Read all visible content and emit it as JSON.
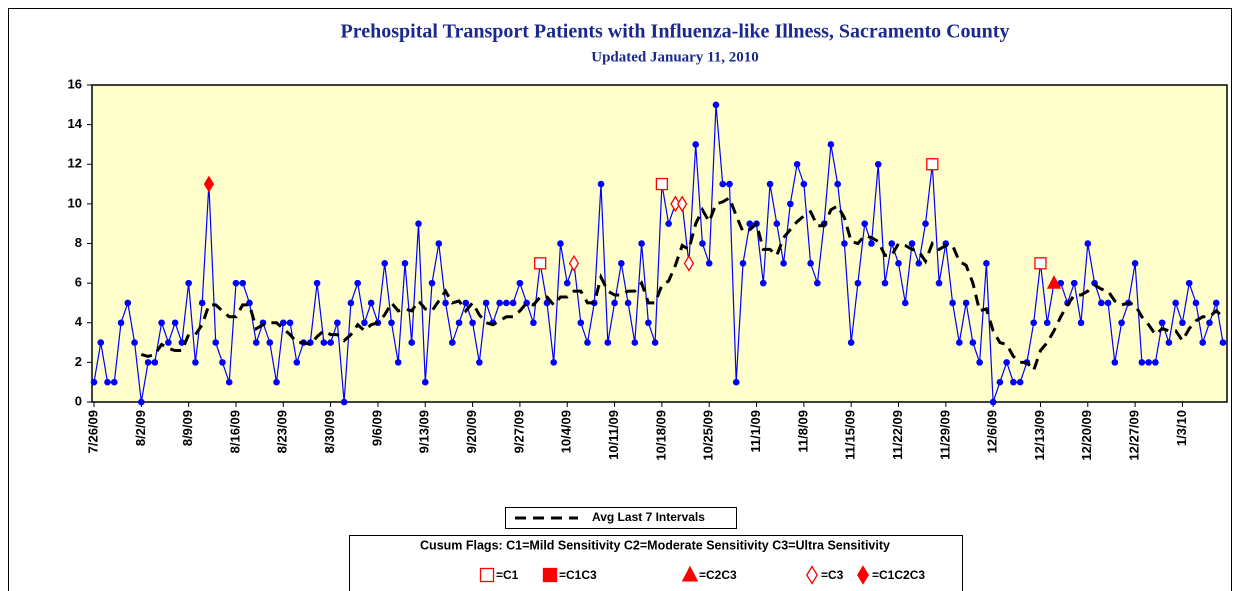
{
  "chart_data": {
    "type": "line",
    "title": "Prehospital Transport Patients with Influenza-like Illness, Sacramento County",
    "subtitle": "Updated January 11, 2010",
    "categories": [
      "7/26/09",
      null,
      null,
      null,
      null,
      null,
      null,
      "8/2/09",
      null,
      null,
      null,
      null,
      null,
      null,
      "8/9/09",
      null,
      null,
      null,
      null,
      null,
      null,
      "8/16/09",
      null,
      null,
      null,
      null,
      null,
      null,
      "8/23/09",
      null,
      null,
      null,
      null,
      null,
      null,
      "8/30/09",
      null,
      null,
      null,
      null,
      null,
      null,
      "9/6/09",
      null,
      null,
      null,
      null,
      null,
      null,
      "9/13/09",
      null,
      null,
      null,
      null,
      null,
      null,
      "9/20/09",
      null,
      null,
      null,
      null,
      null,
      null,
      "9/27/09",
      null,
      null,
      null,
      null,
      null,
      null,
      "10/4/09",
      null,
      null,
      null,
      null,
      null,
      null,
      "10/11/09",
      null,
      null,
      null,
      null,
      null,
      null,
      "10/18/09",
      null,
      null,
      null,
      null,
      null,
      null,
      "10/25/09",
      null,
      null,
      null,
      null,
      null,
      null,
      "11/1/09",
      null,
      null,
      null,
      null,
      null,
      null,
      "11/8/09",
      null,
      null,
      null,
      null,
      null,
      null,
      "11/15/09",
      null,
      null,
      null,
      null,
      null,
      null,
      "11/22/09",
      null,
      null,
      null,
      null,
      null,
      null,
      "11/29/09",
      null,
      null,
      null,
      null,
      null,
      null,
      "12/6/09",
      null,
      null,
      null,
      null,
      null,
      null,
      "12/13/09",
      null,
      null,
      null,
      null,
      null,
      null,
      "12/20/09",
      null,
      null,
      null,
      null,
      null,
      null,
      "12/27/09",
      null,
      null,
      null,
      null,
      null,
      null,
      "1/3/10",
      null,
      null,
      null,
      null,
      null,
      null
    ],
    "series": [
      {
        "color": "#0000ff",
        "marker": "circle",
        "values": [
          1,
          3,
          1,
          1,
          4,
          5,
          3,
          0,
          2,
          2,
          4,
          3,
          4,
          3,
          6,
          2,
          5,
          11,
          3,
          2,
          1,
          6,
          6,
          5,
          3,
          4,
          3,
          1,
          4,
          4,
          2,
          3,
          3,
          6,
          3,
          3,
          4,
          0,
          5,
          6,
          4,
          5,
          4,
          7,
          4,
          2,
          7,
          3,
          9,
          1,
          6,
          8,
          5,
          3,
          4,
          5,
          4,
          2,
          5,
          4,
          5,
          5,
          5,
          6,
          5,
          4,
          7,
          5,
          2,
          8,
          6,
          7,
          4,
          3,
          5,
          11,
          3,
          5,
          7,
          5,
          3,
          8,
          4,
          3,
          11,
          9,
          10,
          10,
          7,
          13,
          8,
          7,
          15,
          11,
          11,
          1,
          7,
          9,
          9,
          6,
          11,
          9,
          7,
          10,
          12,
          11,
          7,
          6,
          9,
          13,
          11,
          8,
          3,
          6,
          9,
          8,
          12,
          6,
          8,
          7,
          5,
          8,
          7,
          9,
          12,
          6,
          8,
          5,
          3,
          5,
          3,
          2,
          7,
          0,
          1,
          2,
          1,
          1,
          2,
          4,
          7,
          4,
          6,
          6,
          5,
          6,
          4,
          8,
          6,
          5,
          5,
          2,
          4,
          5,
          7,
          2,
          2,
          2,
          4,
          3,
          5,
          4,
          6,
          5,
          3,
          4,
          5,
          3
        ]
      },
      {
        "name": "Avg Last 7 Intervals",
        "color": "#000000",
        "style": "dashed",
        "values": [
          null,
          null,
          null,
          null,
          null,
          null,
          null,
          2.4,
          2.3,
          2.4,
          2.9,
          2.7,
          2.6,
          2.6,
          3.4,
          3.4,
          3.9,
          4.9,
          4.9,
          4.6,
          4.3,
          4.3,
          4.9,
          4.9,
          3.7,
          3.9,
          4.0,
          4.0,
          3.7,
          3.4,
          3.0,
          3.0,
          2.9,
          3.3,
          3.6,
          3.4,
          3.4,
          3.1,
          3.4,
          3.9,
          3.6,
          3.9,
          4.0,
          4.4,
          5.0,
          4.6,
          4.7,
          4.6,
          5.1,
          4.7,
          4.6,
          5.1,
          5.6,
          5.0,
          5.1,
          4.6,
          5.0,
          4.4,
          4.0,
          3.9,
          4.1,
          4.3,
          4.3,
          4.6,
          5.0,
          4.9,
          5.3,
          5.3,
          4.9,
          5.3,
          5.3,
          5.6,
          5.6,
          5.0,
          5.0,
          6.3,
          5.6,
          5.4,
          5.4,
          5.6,
          5.6,
          6.0,
          5.0,
          5.0,
          5.9,
          6.1,
          6.9,
          7.9,
          7.7,
          9.0,
          9.7,
          9.1,
          10.0,
          10.1,
          10.3,
          9.4,
          8.6,
          8.7,
          9.0,
          7.7,
          7.7,
          7.4,
          8.3,
          8.7,
          9.1,
          9.4,
          9.6,
          8.9,
          8.9,
          9.7,
          9.9,
          9.3,
          8.1,
          8.0,
          8.4,
          8.3,
          8.1,
          7.4,
          7.4,
          8.0,
          7.9,
          7.7,
          7.6,
          7.1,
          8.0,
          7.7,
          7.9,
          7.9,
          7.1,
          6.9,
          6.0,
          4.6,
          4.7,
          3.6,
          3.0,
          2.9,
          2.3,
          2.0,
          2.0,
          1.6,
          2.6,
          3.0,
          3.6,
          4.3,
          4.9,
          5.4,
          5.4,
          5.6,
          5.9,
          5.7,
          5.6,
          5.1,
          4.9,
          5.0,
          4.9,
          4.3,
          3.9,
          3.4,
          3.7,
          3.6,
          3.6,
          3.1,
          3.7,
          4.1,
          4.3,
          4.3,
          4.6,
          4.3
        ]
      }
    ],
    "flag_legend_title": "Cusum Flags:  C1=Mild Sensitivity  C2=Moderate Sensitivity  C3=Ultra Sensitivity",
    "flags": [
      {
        "name": "=C1",
        "color": "#ff0000",
        "marker": "open-square",
        "values": [
          null,
          null,
          null,
          null,
          null,
          null,
          null,
          null,
          null,
          null,
          null,
          null,
          null,
          null,
          null,
          null,
          null,
          null,
          null,
          null,
          null,
          null,
          null,
          null,
          null,
          null,
          null,
          null,
          null,
          null,
          null,
          null,
          null,
          null,
          null,
          null,
          null,
          null,
          null,
          null,
          null,
          null,
          null,
          null,
          null,
          null,
          null,
          null,
          null,
          null,
          null,
          null,
          null,
          null,
          null,
          null,
          null,
          null,
          null,
          null,
          null,
          null,
          null,
          null,
          null,
          null,
          7,
          null,
          null,
          null,
          null,
          null,
          null,
          null,
          null,
          null,
          null,
          null,
          null,
          null,
          null,
          null,
          null,
          null,
          11,
          null,
          null,
          null,
          null,
          null,
          null,
          null,
          null,
          null,
          null,
          null,
          null,
          null,
          null,
          null,
          null,
          null,
          null,
          null,
          null,
          null,
          null,
          null,
          null,
          null,
          null,
          null,
          null,
          null,
          null,
          null,
          null,
          null,
          null,
          null,
          null,
          null,
          null,
          null,
          12,
          null,
          null,
          null,
          null,
          null,
          null,
          null,
          null,
          null,
          null,
          null,
          null,
          null,
          null,
          null,
          7,
          null,
          null,
          null,
          null,
          null,
          null,
          null,
          null,
          null,
          null,
          null,
          null,
          null,
          null,
          null,
          null,
          null,
          null,
          null,
          null,
          null,
          null,
          null,
          null,
          null,
          null,
          null
        ]
      },
      {
        "name": "=C1C3",
        "color": "#ff0000",
        "marker": "square"
      },
      {
        "name": "=C2C3",
        "color": "#ff0000",
        "marker": "triangle",
        "values": [
          null,
          null,
          null,
          null,
          null,
          null,
          null,
          null,
          null,
          null,
          null,
          null,
          null,
          null,
          null,
          null,
          null,
          null,
          null,
          null,
          null,
          null,
          null,
          null,
          null,
          null,
          null,
          null,
          null,
          null,
          null,
          null,
          null,
          null,
          null,
          null,
          null,
          null,
          null,
          null,
          null,
          null,
          null,
          null,
          null,
          null,
          null,
          null,
          null,
          null,
          null,
          null,
          null,
          null,
          null,
          null,
          null,
          null,
          null,
          null,
          null,
          null,
          null,
          null,
          null,
          null,
          null,
          null,
          null,
          null,
          null,
          null,
          null,
          null,
          null,
          null,
          null,
          null,
          null,
          null,
          null,
          null,
          null,
          null,
          null,
          null,
          null,
          null,
          null,
          null,
          null,
          null,
          null,
          null,
          null,
          null,
          null,
          null,
          null,
          null,
          null,
          null,
          null,
          null,
          null,
          null,
          null,
          null,
          null,
          null,
          null,
          null,
          null,
          null,
          null,
          null,
          null,
          null,
          null,
          null,
          null,
          null,
          null,
          null,
          null,
          null,
          null,
          null,
          null,
          null,
          null,
          null,
          null,
          null,
          null,
          null,
          null,
          null,
          null,
          null,
          null,
          null,
          6,
          null,
          null,
          null,
          null,
          null,
          null,
          null,
          null,
          null,
          null,
          null,
          null,
          null,
          null,
          null,
          null,
          null,
          null,
          null,
          null,
          null,
          null,
          null,
          null,
          null
        ]
      },
      {
        "name": "=C3",
        "color": "#ff0000",
        "marker": "open-diamond",
        "values": [
          null,
          null,
          null,
          null,
          null,
          null,
          null,
          null,
          null,
          null,
          null,
          null,
          null,
          null,
          null,
          null,
          null,
          null,
          null,
          null,
          null,
          null,
          null,
          null,
          null,
          null,
          null,
          null,
          null,
          null,
          null,
          null,
          null,
          null,
          null,
          null,
          null,
          null,
          null,
          null,
          null,
          null,
          null,
          null,
          null,
          null,
          null,
          null,
          null,
          null,
          null,
          null,
          null,
          null,
          null,
          null,
          null,
          null,
          null,
          null,
          null,
          null,
          null,
          null,
          null,
          null,
          null,
          null,
          null,
          null,
          null,
          7,
          null,
          null,
          null,
          null,
          null,
          null,
          null,
          null,
          null,
          null,
          null,
          null,
          null,
          null,
          10,
          10,
          7,
          null,
          null,
          null,
          null,
          null,
          null,
          null,
          null,
          null,
          null,
          null,
          null,
          null,
          null,
          null,
          null,
          null,
          null,
          null,
          null,
          null,
          null,
          null,
          null,
          null,
          null,
          null,
          null,
          null,
          null,
          null,
          null,
          null,
          null,
          null,
          null,
          null,
          null,
          null,
          null,
          null,
          null,
          null,
          null,
          null,
          null,
          null,
          null,
          null,
          null,
          null,
          null,
          null,
          null,
          null,
          null,
          null,
          null,
          null,
          null,
          null,
          null,
          null,
          null,
          null,
          null,
          null,
          null,
          null,
          null,
          null,
          null,
          null,
          null,
          null,
          null,
          null,
          null,
          null
        ]
      },
      {
        "name": "=C1C2C3",
        "color": "#ff0000",
        "marker": "diamond",
        "values": [
          null,
          null,
          null,
          null,
          null,
          null,
          null,
          null,
          null,
          null,
          null,
          null,
          null,
          null,
          null,
          null,
          null,
          11,
          null,
          null,
          null,
          null,
          null,
          null,
          null,
          null,
          null,
          null,
          null,
          null,
          null,
          null,
          null,
          null,
          null,
          null,
          null,
          null,
          null,
          null,
          null,
          null,
          null,
          null,
          null,
          null,
          null,
          null,
          null,
          null,
          null,
          null,
          null,
          null,
          null,
          null,
          null,
          null,
          null,
          null,
          null,
          null,
          null,
          null,
          null,
          null,
          null,
          null,
          null,
          null,
          null,
          null,
          null,
          null,
          null,
          null,
          null,
          null,
          null,
          null,
          null,
          null,
          null,
          null,
          null,
          null,
          null,
          null,
          null,
          null,
          null,
          null,
          null,
          null,
          null,
          null,
          null,
          null,
          null,
          null,
          null,
          null,
          null,
          null,
          null,
          null,
          null,
          null,
          null,
          null,
          null,
          null,
          null,
          null,
          null,
          null,
          null,
          null,
          null,
          null,
          null,
          null,
          null,
          null,
          null,
          null,
          null,
          null,
          null,
          null,
          null,
          null,
          null,
          null,
          null,
          null,
          null,
          null,
          null,
          null,
          null,
          null,
          null,
          null,
          null,
          null,
          null,
          null,
          null,
          null,
          null,
          null,
          null,
          null,
          null,
          null,
          null,
          null,
          null,
          null,
          null,
          null,
          null,
          null,
          null,
          null,
          null,
          null
        ]
      }
    ],
    "ylim": [
      0,
      16
    ],
    "yticks": [
      0,
      2,
      4,
      6,
      8,
      10,
      12,
      14,
      16
    ],
    "plot_background": "#ffffcc",
    "grid": false
  }
}
